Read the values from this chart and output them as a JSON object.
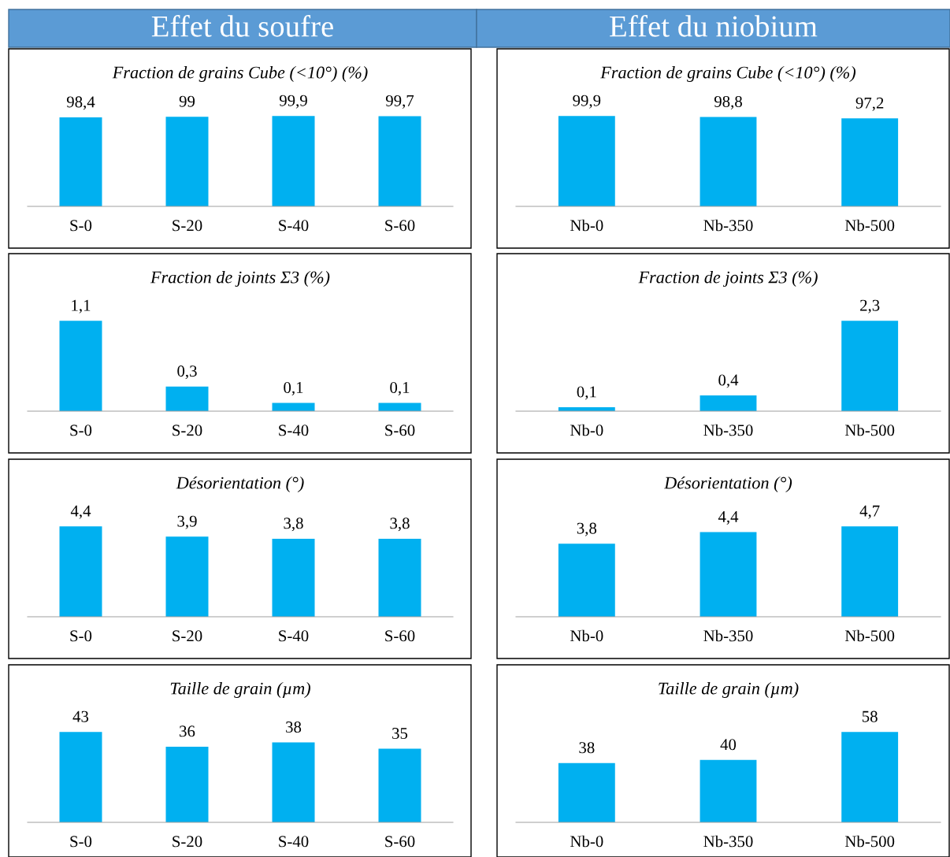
{
  "chart_data": [
    {
      "type": "bar",
      "title": "Fraction de grains Cube (<10°) (%)",
      "annotations": [
        "Effet du soufre"
      ],
      "categories": [
        "S-0",
        "S-20",
        "S-40",
        "S-60"
      ],
      "values": [
        98.4,
        99,
        99.9,
        99.7
      ],
      "value_labels": [
        "98,4",
        "99",
        "99,9",
        "99,7"
      ],
      "color": "#00b0f0",
      "tick_labels": "x",
      "grid": false,
      "legend": false
    },
    {
      "type": "bar",
      "title": "Fraction de grains Cube (<10°) (%)",
      "annotations": [
        "Effet du niobium"
      ],
      "categories": [
        "Nb-0",
        "Nb-350",
        "Nb-500"
      ],
      "values": [
        99.9,
        98.8,
        97.2
      ],
      "value_labels": [
        "99,9",
        "98,8",
        "97,2"
      ],
      "color": "#00b0f0",
      "tick_labels": "x",
      "grid": false,
      "legend": false
    },
    {
      "type": "bar",
      "title": "Fraction de joints Σ3 (%)",
      "categories": [
        "S-0",
        "S-20",
        "S-40",
        "S-60"
      ],
      "values": [
        1.1,
        0.3,
        0.1,
        0.1
      ],
      "value_labels": [
        "1,1",
        "0,3",
        "0,1",
        "0,1"
      ],
      "color": "#00b0f0",
      "tick_labels": "x",
      "grid": false,
      "legend": false
    },
    {
      "type": "bar",
      "title": "Fraction de joints Σ3 (%)",
      "categories": [
        "Nb-0",
        "Nb-350",
        "Nb-500"
      ],
      "values": [
        0.1,
        0.4,
        2.3
      ],
      "value_labels": [
        "0,1",
        "0,4",
        "2,3"
      ],
      "color": "#00b0f0",
      "tick_labels": "x",
      "grid": false,
      "legend": false
    },
    {
      "type": "bar",
      "title": "Désorientation (°)",
      "categories": [
        "S-0",
        "S-20",
        "S-40",
        "S-60"
      ],
      "values": [
        4.4,
        3.9,
        3.8,
        3.8
      ],
      "value_labels": [
        "4,4",
        "3,9",
        "3,8",
        "3,8"
      ],
      "color": "#00b0f0",
      "tick_labels": "x",
      "grid": false,
      "legend": false
    },
    {
      "type": "bar",
      "title": "Désorientation (°)",
      "categories": [
        "Nb-0",
        "Nb-350",
        "Nb-500"
      ],
      "values": [
        3.8,
        4.4,
        4.7
      ],
      "value_labels": [
        "3,8",
        "4,4",
        "4,7"
      ],
      "color": "#00b0f0",
      "tick_labels": "x",
      "grid": false,
      "legend": false
    },
    {
      "type": "bar",
      "title": "Taille de grain (µm)",
      "categories": [
        "S-0",
        "S-20",
        "S-40",
        "S-60"
      ],
      "values": [
        43,
        36,
        38,
        35
      ],
      "value_labels": [
        "43",
        "36",
        "38",
        "35"
      ],
      "color": "#00b0f0",
      "tick_labels": "x",
      "grid": false,
      "legend": false
    },
    {
      "type": "bar",
      "title": "Taille de grain (µm)",
      "categories": [
        "Nb-0",
        "Nb-350",
        "Nb-500"
      ],
      "values": [
        38,
        40,
        58
      ],
      "value_labels": [
        "38",
        "40",
        "58"
      ],
      "color": "#00b0f0",
      "tick_labels": "x",
      "grid": false,
      "legend": false
    }
  ]
}
